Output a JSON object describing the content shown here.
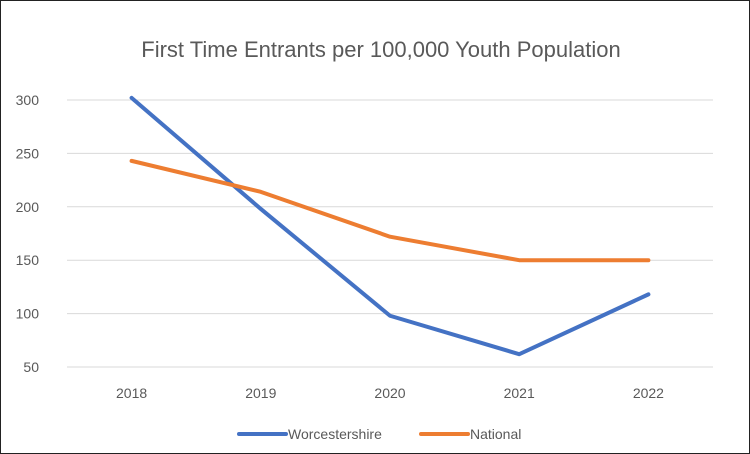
{
  "chart_data": {
    "type": "line",
    "title": "First Time Entrants per 100,000 Youth Population",
    "xlabel": "",
    "ylabel": "",
    "categories": [
      "2018",
      "2019",
      "2020",
      "2021",
      "2022"
    ],
    "ylim": [
      50,
      300
    ],
    "yticks": [
      50,
      100,
      150,
      200,
      250,
      300
    ],
    "grid": true,
    "legend_position": "bottom",
    "series": [
      {
        "name": "Worcestershire",
        "color": "#4472C4",
        "values": [
          302,
          198,
          98,
          62,
          118
        ]
      },
      {
        "name": "National",
        "color": "#ED7D31",
        "values": [
          243,
          214,
          172,
          150,
          150
        ]
      }
    ]
  }
}
